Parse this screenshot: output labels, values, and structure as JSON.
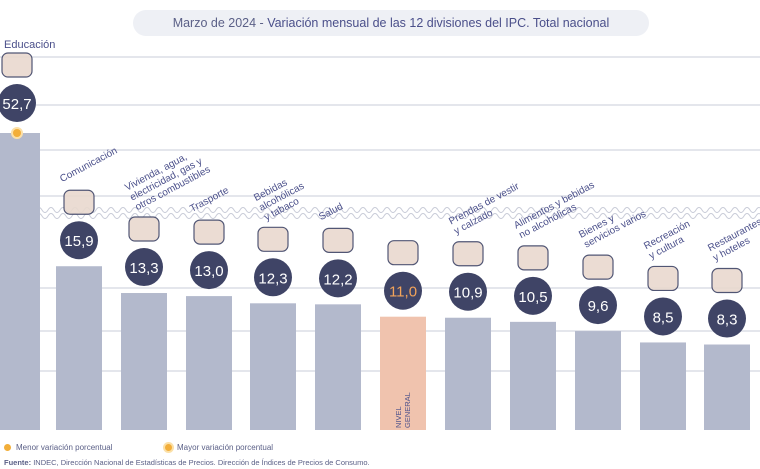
{
  "title_date": "Marzo de 2024",
  "title_separator": " - ",
  "title_text": "Variación mensual de las 12 divisiones del IPC. Total nacional",
  "legend": {
    "min_label": "Menor variación porcentual",
    "max_label": "Mayor variación porcentual"
  },
  "source_label": "Fuente:",
  "source_text": "INDEC, Dirección Nacional de Estadísticas de Precios. Dirección de Índices de Precios de Consumo.",
  "colors": {
    "bar": "#b3b9cc",
    "bar_highlight": "#f0c3ae",
    "badge": "#3f4466",
    "badge_highlight_text": "#f3a45a",
    "grid": "#c9ccd8",
    "label": "#4a4f8a",
    "legend_min": "#f2ae3a",
    "legend_max": "#f2ae3a"
  },
  "chart_data": {
    "type": "bar",
    "title": "Marzo de 2024 - Variación mensual de las 12 divisiones del IPC. Total nacional",
    "y_axis_broken": true,
    "grid": true,
    "categories": [
      "Educación",
      "Comunicación",
      "Vivienda, agua, electricidad, gas y otros combustibles",
      "Trasporte",
      "Bebidas alcohólicas y tabaco",
      "Salud",
      "NIVEL GENERAL",
      "Prendas de vestir y calzado",
      "Alimentos y bebidas no alcohólicas",
      "Bienes y servicios varios",
      "Recreación y cultura",
      "Restaurantes y hoteles"
    ],
    "label_lines": [
      [
        "Educación"
      ],
      [
        "Comunicación"
      ],
      [
        "Vivienda, agua,",
        "electricidad, gas y",
        "otros combustibles"
      ],
      [
        "Trasporte"
      ],
      [
        "Bebidas",
        "alcohólicas",
        "y tabaco"
      ],
      [
        "Salud"
      ],
      [
        "NIVEL",
        "GENERAL"
      ],
      [
        "Prendas de vestir",
        "y calzado"
      ],
      [
        "Alimentos y bebidas",
        "no alcohólicas"
      ],
      [
        "Bienes y",
        "servicios varios"
      ],
      [
        "Recreación",
        "y cultura"
      ],
      [
        "Restaurantes",
        "y hoteles"
      ]
    ],
    "values": [
      52.7,
      15.9,
      13.3,
      13.0,
      12.3,
      12.2,
      11.0,
      10.9,
      10.5,
      9.6,
      8.5,
      8.3
    ],
    "value_labels": [
      "52,7",
      "15,9",
      "13,3",
      "13,0",
      "12,3",
      "12,2",
      "11,0",
      "10,9",
      "10,5",
      "9,6",
      "8,5",
      "8,3"
    ],
    "icons": [
      "book-icon",
      "phone-icon",
      "house-utilities-icon",
      "bus-icon",
      "drinks-icon",
      "health-cross-icon",
      "shopping-basket-icon",
      "tshirt-icon",
      "food-icon",
      "comb-scissors-icon",
      "recreation-icon",
      "restaurant-icon"
    ],
    "highlight_index": 6,
    "max_index": 0
  }
}
